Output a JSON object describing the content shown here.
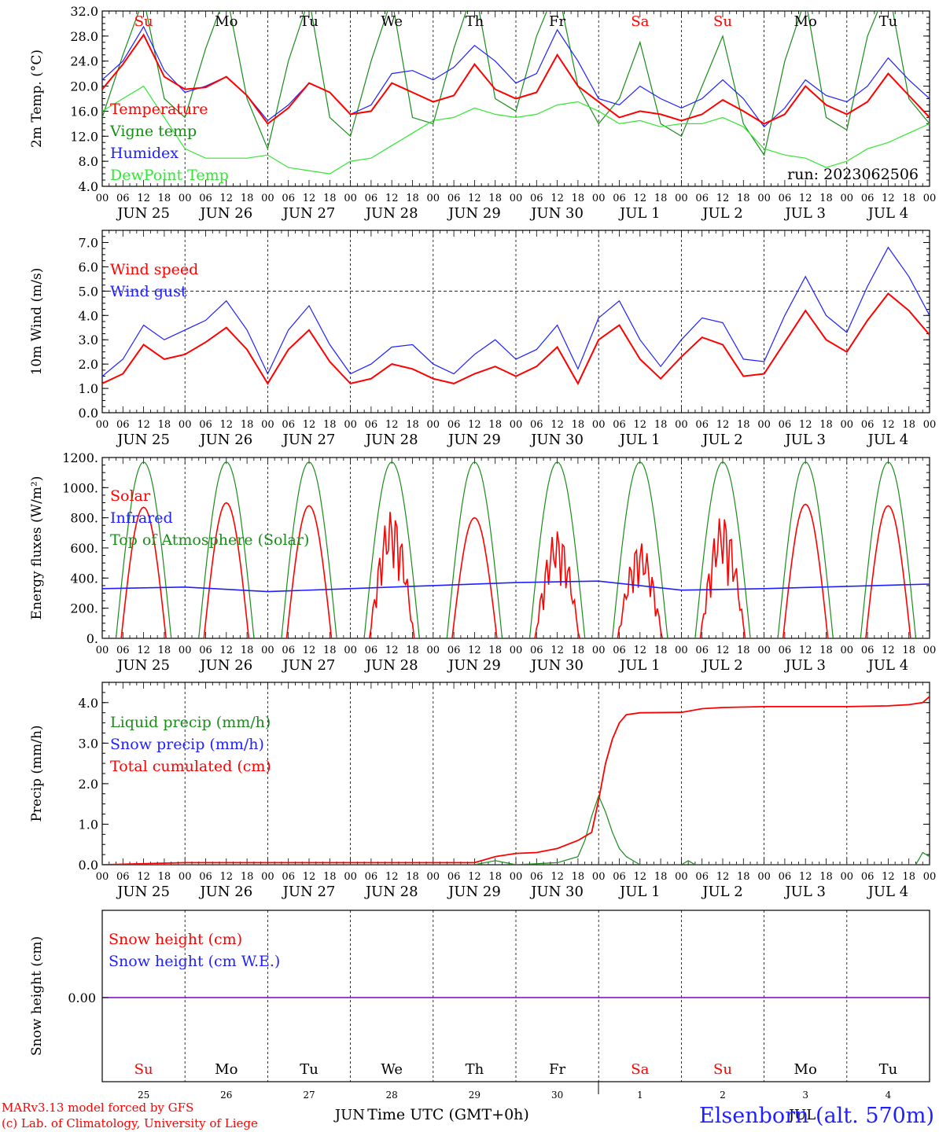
{
  "colors": {
    "red": "#ff0000",
    "green": "#1a8c1a",
    "lightgreen": "#33e633",
    "blue": "#1f1fff",
    "purple": "#7f00bf",
    "black": "#000000"
  },
  "x_ticks": [
    "00",
    "06",
    "12",
    "18"
  ],
  "x_end_tick": "00",
  "date_labels": [
    "JUN 25",
    "JUN 26",
    "JUN 27",
    "JUN 28",
    "JUN 29",
    "JUN 30",
    "JUL  1",
    "JUL  2",
    "JUL  3",
    "JUL  4"
  ],
  "day_names": [
    {
      "label": "Su",
      "color": "red"
    },
    {
      "label": "Mo",
      "color": "black"
    },
    {
      "label": "Tu",
      "color": "black"
    },
    {
      "label": "We",
      "color": "black"
    },
    {
      "label": "Th",
      "color": "black"
    },
    {
      "label": "Fr",
      "color": "black"
    },
    {
      "label": "Sa",
      "color": "red"
    },
    {
      "label": "Su",
      "color": "red"
    },
    {
      "label": "Mo",
      "color": "black"
    },
    {
      "label": "Tu",
      "color": "black"
    }
  ],
  "bottom_day_numbers": [
    "25",
    "26",
    "27",
    "28",
    "29",
    "30",
    "1",
    "2",
    "3",
    "4"
  ],
  "bottom_month_labels": [
    "JUN",
    "JUL"
  ],
  "run_label": "run: 2023062506",
  "xlabel": "Time UTC (GMT+0h)",
  "footer": {
    "credit_1": "MARv3.13 model forced by GFS",
    "credit_2": "(c) Lab. of Climatology, University of Liege",
    "station": "Elsenborn (alt. 570m)"
  },
  "chart_data": [
    {
      "type": "line",
      "ylabel": "2m Temp. (°C)",
      "ylim": [
        4,
        32
      ],
      "yticks": [
        "4.0",
        "8.0",
        "12.0",
        "16.0",
        "20.0",
        "24.0",
        "28.0",
        "32.0"
      ],
      "x_unit": "hours from 2023-06-25 00 UTC",
      "series": [
        {
          "name": "Temperature",
          "color": "red",
          "x": [
            0,
            6,
            12,
            18,
            24,
            30,
            36,
            42,
            48,
            54,
            60,
            66,
            72,
            78,
            84,
            90,
            96,
            102,
            108,
            114,
            120,
            126,
            132,
            138,
            144,
            150,
            156,
            162,
            168,
            174,
            180,
            186,
            192,
            198,
            204,
            210,
            216,
            222,
            228,
            234,
            240
          ],
          "y": [
            19.5,
            23.5,
            28.2,
            21.5,
            19.5,
            19.8,
            21.5,
            18.5,
            14.0,
            16.5,
            20.5,
            19.0,
            15.5,
            16.0,
            20.5,
            19.0,
            17.5,
            18.5,
            23.5,
            19.5,
            18.0,
            19.0,
            25.0,
            20.0,
            17.5,
            15.0,
            16.0,
            15.5,
            14.5,
            15.5,
            17.8,
            16.0,
            14.0,
            15.5,
            20.0,
            17.0,
            15.5,
            17.5,
            22.0,
            18.5,
            15.0
          ]
        },
        {
          "name": "Vigne temp",
          "color": "green",
          "x": [
            0,
            6,
            12,
            18,
            24,
            30,
            36,
            42,
            48,
            54,
            60,
            66,
            72,
            78,
            84,
            90,
            96,
            102,
            108,
            114,
            120,
            126,
            132,
            138,
            144,
            150,
            156,
            162,
            168,
            174,
            180,
            186,
            192,
            198,
            204,
            210,
            216,
            222,
            228,
            234,
            240
          ],
          "y": [
            15.0,
            25.0,
            34.0,
            18.0,
            15.0,
            26.0,
            35.0,
            18.0,
            10.0,
            24.0,
            34.0,
            15.0,
            12.0,
            24.0,
            34.0,
            15.0,
            14.0,
            26.0,
            36.0,
            18.0,
            16.0,
            28.0,
            36.0,
            20.0,
            14.0,
            18.0,
            27.0,
            14.0,
            12.0,
            20.0,
            28.0,
            14.0,
            9.0,
            24.0,
            34.0,
            15.0,
            13.0,
            28.0,
            36.0,
            18.0,
            14.0
          ]
        },
        {
          "name": "Humidex",
          "color": "blue",
          "x": [
            0,
            6,
            12,
            18,
            24,
            30,
            36,
            42,
            48,
            54,
            60,
            66,
            72,
            78,
            84,
            90,
            96,
            102,
            108,
            114,
            120,
            126,
            132,
            138,
            144,
            150,
            156,
            162,
            168,
            174,
            180,
            186,
            192,
            198,
            204,
            210,
            216,
            222,
            228,
            234,
            240
          ],
          "y": [
            21.0,
            24.0,
            29.5,
            22.5,
            19.0,
            20.0,
            21.5,
            18.5,
            14.5,
            17.0,
            20.5,
            19.0,
            15.5,
            17.0,
            22.0,
            22.5,
            21.0,
            23.0,
            26.5,
            24.0,
            20.5,
            22.0,
            29.0,
            24.0,
            18.0,
            17.0,
            20.0,
            18.0,
            16.5,
            18.0,
            21.0,
            18.0,
            13.5,
            16.5,
            21.0,
            18.5,
            17.5,
            20.0,
            24.5,
            21.0,
            18.0
          ]
        },
        {
          "name": "DewPoint Temp",
          "color": "lightgreen",
          "x": [
            0,
            6,
            12,
            18,
            24,
            30,
            36,
            42,
            48,
            54,
            60,
            66,
            72,
            78,
            84,
            90,
            96,
            102,
            108,
            114,
            120,
            126,
            132,
            138,
            144,
            150,
            156,
            162,
            168,
            174,
            180,
            186,
            192,
            198,
            204,
            210,
            216,
            222,
            228,
            234,
            240
          ],
          "y": [
            16.0,
            18.0,
            20.0,
            15.0,
            10.0,
            8.5,
            8.5,
            8.5,
            9.0,
            7.0,
            6.5,
            6.0,
            8.0,
            8.5,
            10.5,
            12.5,
            14.5,
            15.0,
            16.5,
            15.5,
            15.0,
            15.5,
            17.0,
            17.5,
            16.0,
            14.0,
            14.5,
            13.5,
            14.0,
            14.0,
            15.0,
            13.5,
            10.0,
            9.0,
            8.5,
            7.0,
            8.0,
            10.0,
            11.0,
            12.5,
            14.0
          ]
        }
      ]
    },
    {
      "type": "line",
      "ylabel": "10m Wind (m/s)",
      "ylim": [
        0,
        7.5
      ],
      "yticks": [
        "0.0",
        "1.0",
        "2.0",
        "3.0",
        "4.0",
        "5.0",
        "6.0",
        "7.0"
      ],
      "reference_line": 5.0,
      "series": [
        {
          "name": "Wind speed",
          "color": "red",
          "x": [
            0,
            6,
            12,
            18,
            24,
            30,
            36,
            42,
            48,
            54,
            60,
            66,
            72,
            78,
            84,
            90,
            96,
            102,
            108,
            114,
            120,
            126,
            132,
            138,
            144,
            150,
            156,
            162,
            168,
            174,
            180,
            186,
            192,
            198,
            204,
            210,
            216,
            222,
            228,
            234,
            240
          ],
          "y": [
            1.2,
            1.6,
            2.8,
            2.2,
            2.4,
            2.9,
            3.5,
            2.6,
            1.2,
            2.6,
            3.4,
            2.1,
            1.2,
            1.4,
            2.0,
            1.8,
            1.4,
            1.2,
            1.6,
            1.9,
            1.5,
            1.9,
            2.7,
            1.2,
            3.0,
            3.6,
            2.2,
            1.4,
            2.3,
            3.1,
            2.8,
            1.5,
            1.6,
            2.9,
            4.2,
            3.0,
            2.5,
            3.8,
            4.9,
            4.2,
            3.2
          ]
        },
        {
          "name": "Wind gust",
          "color": "blue",
          "x": [
            0,
            6,
            12,
            18,
            24,
            30,
            36,
            42,
            48,
            54,
            60,
            66,
            72,
            78,
            84,
            90,
            96,
            102,
            108,
            114,
            120,
            126,
            132,
            138,
            144,
            150,
            156,
            162,
            168,
            174,
            180,
            186,
            192,
            198,
            204,
            210,
            216,
            222,
            228,
            234,
            240
          ],
          "y": [
            1.5,
            2.2,
            3.6,
            3.0,
            3.4,
            3.8,
            4.6,
            3.4,
            1.6,
            3.4,
            4.4,
            2.8,
            1.6,
            2.0,
            2.7,
            2.8,
            2.0,
            1.6,
            2.4,
            3.0,
            2.2,
            2.6,
            3.6,
            1.8,
            3.9,
            4.6,
            3.0,
            1.9,
            3.0,
            3.9,
            3.7,
            2.2,
            2.1,
            4.0,
            5.6,
            4.0,
            3.3,
            5.2,
            6.8,
            5.6,
            4.0
          ]
        }
      ]
    },
    {
      "type": "line",
      "ylabel": "Energy fluxes (W/m²)",
      "ylim": [
        0,
        1200
      ],
      "yticks": [
        "0.",
        "200.",
        "400.",
        "600.",
        "800.",
        "1000.",
        "1200."
      ],
      "series": [
        {
          "name": "Solar",
          "color": "red",
          "peaks": [
            870,
            900,
            880,
            850,
            800,
            720,
            640,
            820,
            890,
            880
          ]
        },
        {
          "name": "Infrared",
          "color": "blue",
          "x": [
            0,
            24,
            48,
            72,
            96,
            120,
            144,
            168,
            192,
            216,
            240
          ],
          "y": [
            330,
            340,
            310,
            330,
            350,
            370,
            380,
            320,
            330,
            345,
            360
          ]
        },
        {
          "name": "Top of Atmosphere (Solar)",
          "color": "green",
          "peaks": [
            1170,
            1170,
            1170,
            1170,
            1170,
            1170,
            1170,
            1170,
            1170,
            1170
          ]
        }
      ]
    },
    {
      "type": "line",
      "ylabel": "Precip (mm/h)",
      "ylim": [
        0,
        4.5
      ],
      "yticks": [
        "0.0",
        "1.0",
        "2.0",
        "3.0",
        "4.0"
      ],
      "series": [
        {
          "name": "Liquid precip (mm/h)",
          "color": "green",
          "x": [
            0,
            108,
            114,
            120,
            132,
            138,
            140,
            142,
            144,
            146,
            148,
            150,
            152,
            156,
            168,
            170,
            172,
            236,
            238,
            240
          ],
          "y": [
            0,
            0,
            0.1,
            0,
            0.05,
            0.2,
            0.6,
            1.2,
            1.7,
            1.3,
            0.8,
            0.4,
            0.2,
            0,
            0,
            0.1,
            0,
            0,
            0.3,
            0.2
          ]
        },
        {
          "name": "Snow precip (mm/h)",
          "color": "blue",
          "x": [
            0,
            240
          ],
          "y": [
            0,
            0
          ]
        },
        {
          "name": "Total cumulated (cm)",
          "color": "red",
          "x": [
            0,
            24,
            108,
            114,
            120,
            126,
            132,
            138,
            142,
            144,
            146,
            148,
            150,
            152,
            156,
            168,
            174,
            180,
            192,
            216,
            228,
            234,
            238,
            240
          ],
          "y": [
            0,
            0.05,
            0.05,
            0.2,
            0.28,
            0.3,
            0.4,
            0.6,
            0.8,
            1.6,
            2.5,
            3.1,
            3.5,
            3.7,
            3.75,
            3.76,
            3.85,
            3.88,
            3.9,
            3.9,
            3.92,
            3.95,
            4.0,
            4.15
          ]
        }
      ]
    },
    {
      "type": "line",
      "ylabel": "Snow height (cm)",
      "ytick_label": "0.00",
      "series": [
        {
          "name": "Snow height (cm)",
          "color": "red",
          "x": [
            0,
            240
          ],
          "y": [
            0,
            0
          ]
        },
        {
          "name": "Snow height (cm W.E.)",
          "color": "blue",
          "x": [
            0,
            240
          ],
          "y": [
            0,
            0
          ]
        }
      ]
    }
  ]
}
